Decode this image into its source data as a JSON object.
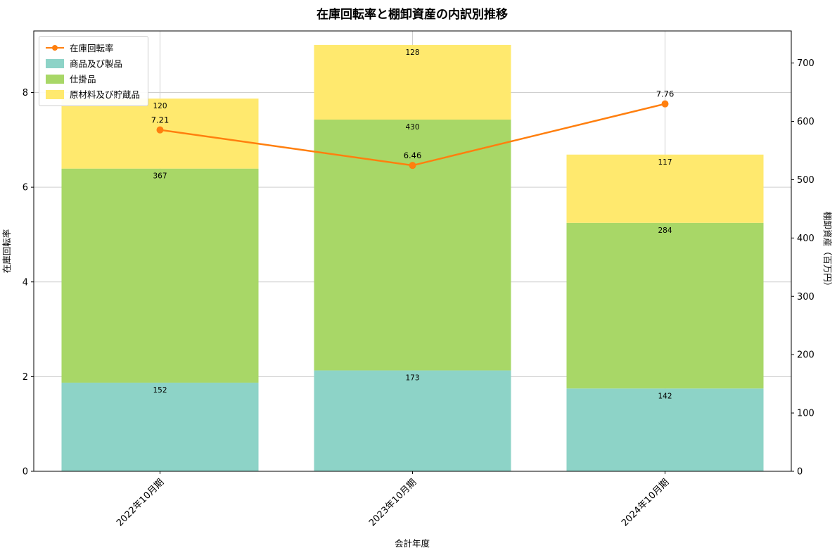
{
  "legend": {
    "items": [
      {
        "label": "在庫回転率",
        "color": "#ff7f0e",
        "type": "line"
      },
      {
        "label": "商品及び製品",
        "color": "#8dd3c7",
        "type": "patch"
      },
      {
        "label": "仕掛品",
        "color": "#a8d767",
        "type": "patch"
      },
      {
        "label": "原材料及び貯蔵品",
        "color": "#ffe96e",
        "type": "patch"
      }
    ]
  },
  "chart_data": {
    "type": "bar",
    "title": "在庫回転率と棚卸資産の内訳別推移",
    "xlabel": "会計年度",
    "ylabel_left": "在庫回転率",
    "ylabel_right": "棚卸資産（百万円）",
    "categories": [
      "2022年10月期",
      "2023年10月期",
      "2024年10月期"
    ],
    "series": [
      {
        "name": "商品及び製品",
        "type": "bar",
        "color": "#8dd3c7",
        "values": [
          152,
          173,
          142
        ]
      },
      {
        "name": "仕掛品",
        "type": "bar",
        "color": "#a8d767",
        "values": [
          367,
          430,
          284
        ]
      },
      {
        "name": "原材料及び貯蔵品",
        "type": "bar",
        "color": "#ffe96e",
        "values": [
          120,
          128,
          117
        ]
      },
      {
        "name": "在庫回転率",
        "type": "line",
        "color": "#ff7f0e",
        "values": [
          7.21,
          6.46,
          7.76
        ],
        "value_labels": [
          "7.21",
          "6.46",
          "7.76"
        ],
        "axis": "left"
      }
    ],
    "ylim_left": [
      0,
      9.3
    ],
    "yticks_left": [
      0,
      2,
      4,
      6,
      8
    ],
    "ylim_right": [
      0,
      755
    ],
    "yticks_right": [
      0,
      100,
      200,
      300,
      400,
      500,
      600,
      700
    ],
    "grid": true,
    "legend_position": "upper left",
    "bar_totals": [
      639,
      731,
      543
    ]
  }
}
